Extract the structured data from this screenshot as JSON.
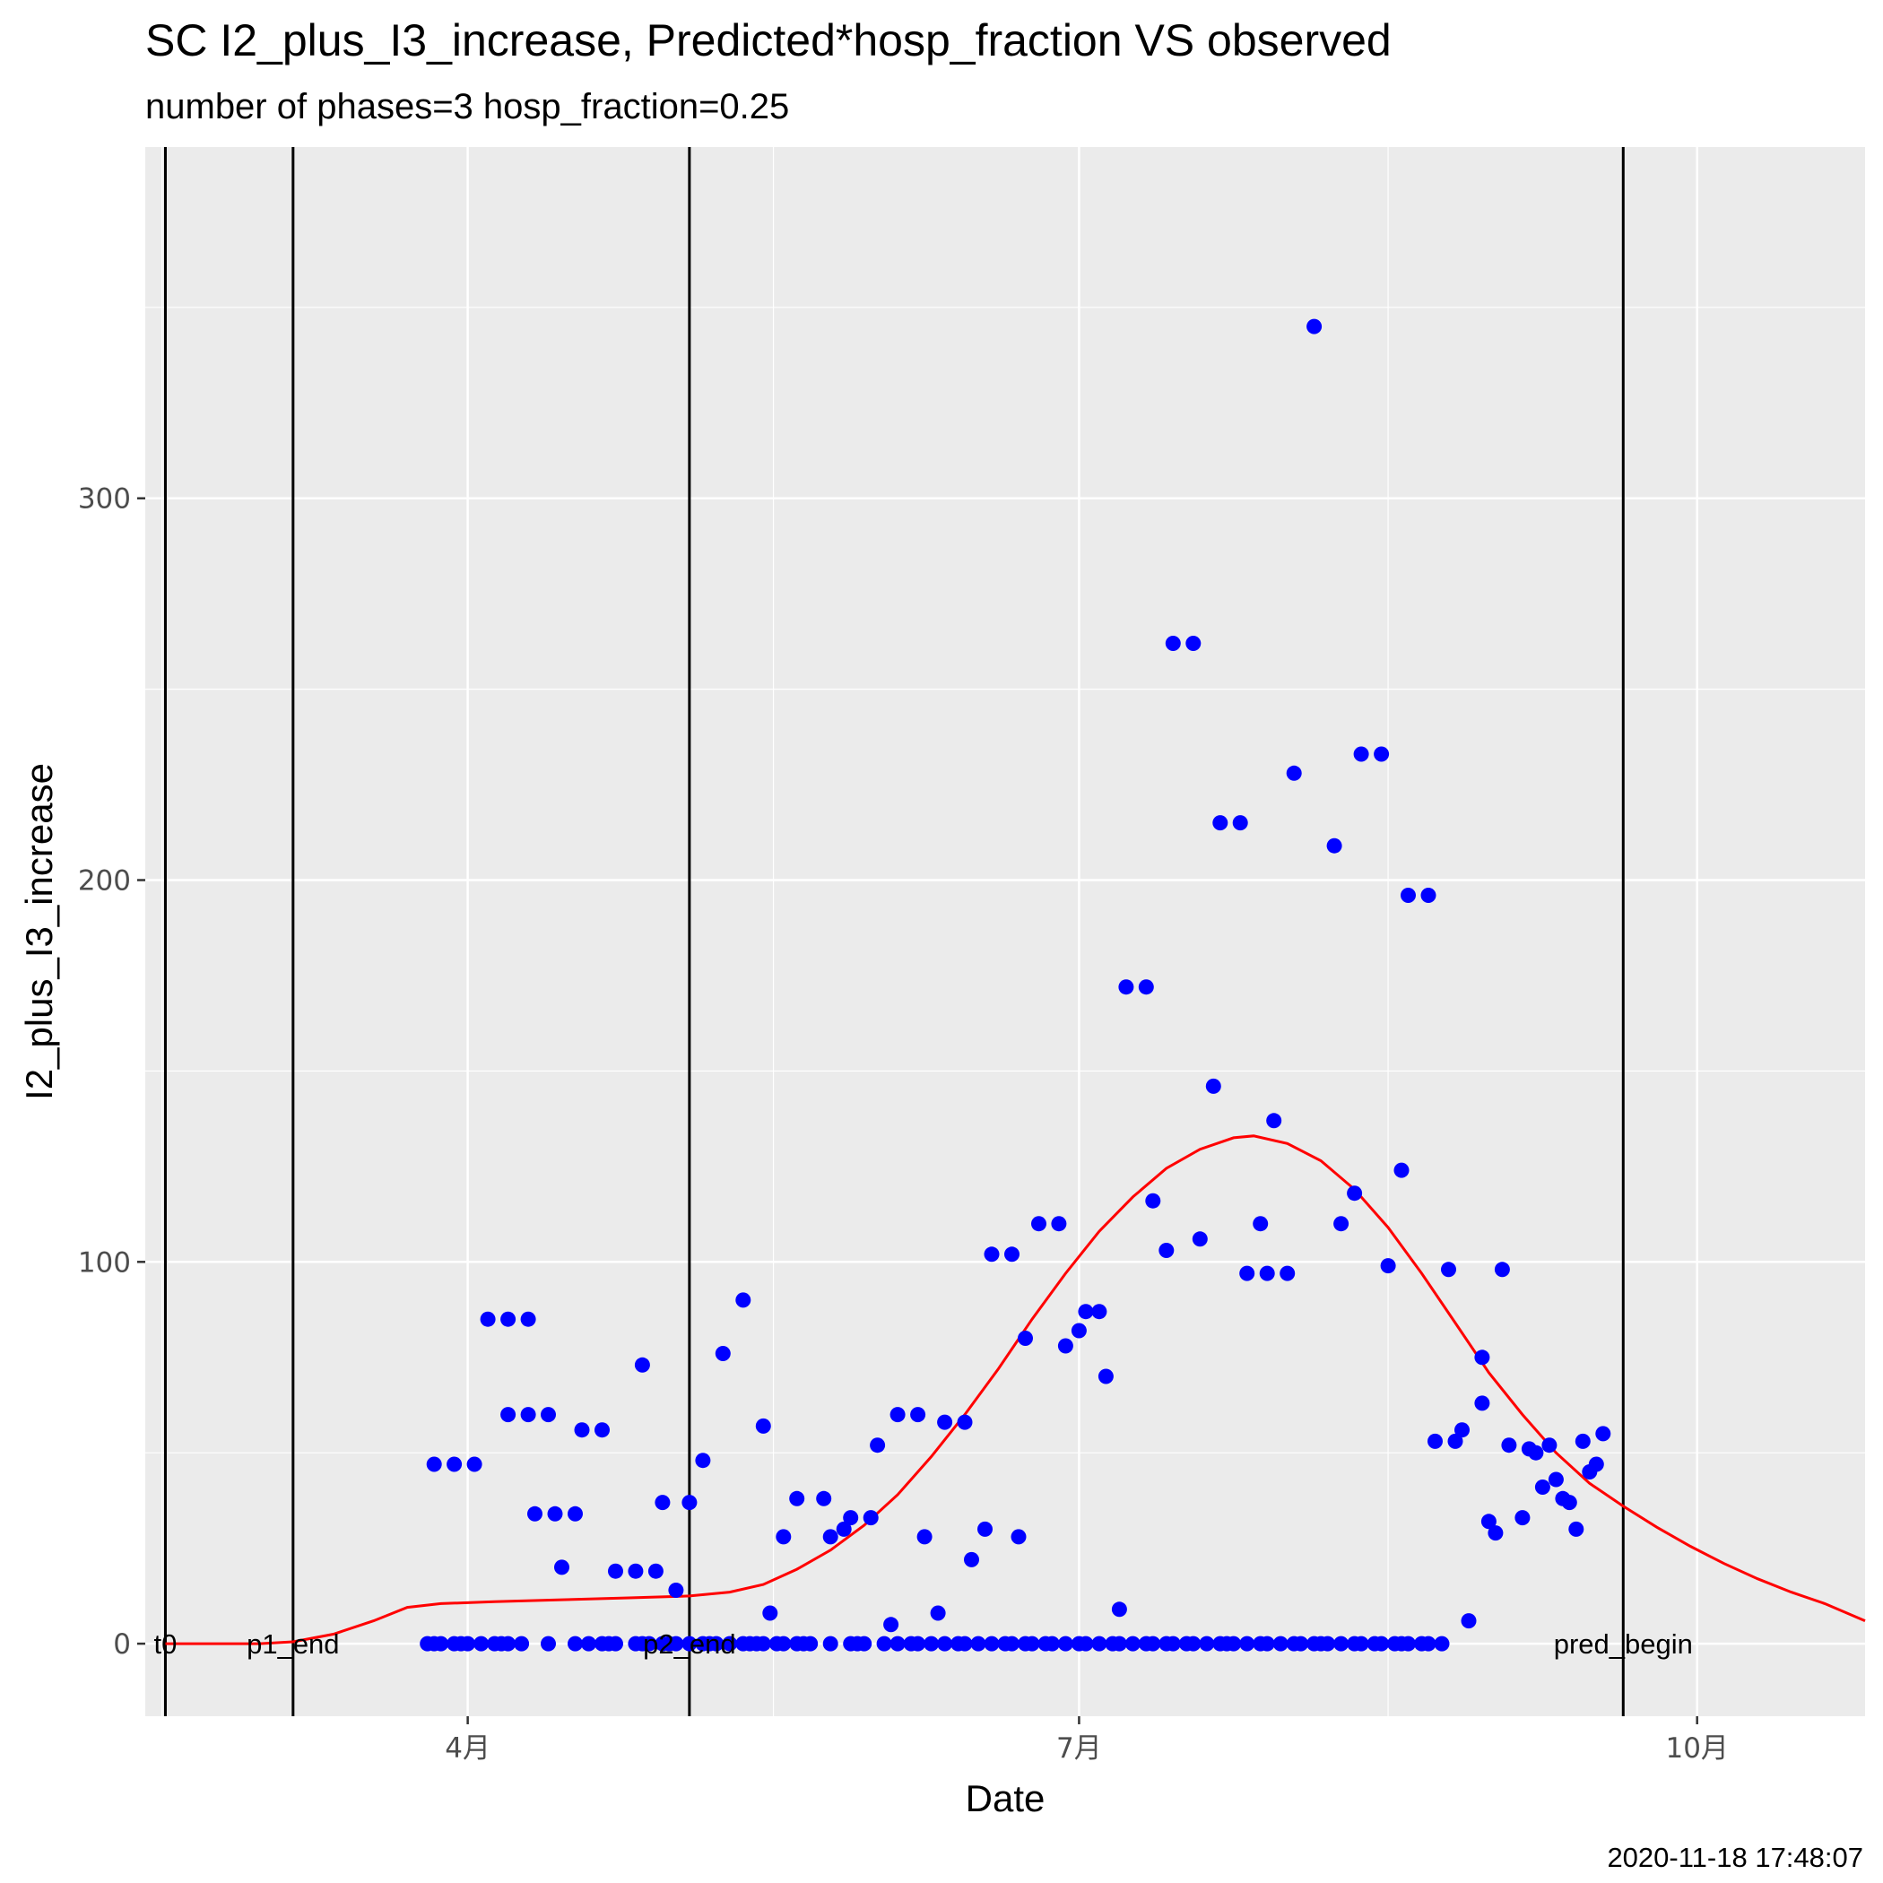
{
  "chart_data": {
    "type": "scatter",
    "title": "SC I2_plus_I3_increase, Predicted*hosp_fraction VS observed",
    "subtitle": "number of phases=3   hosp_fraction=0.25",
    "xlabel": "Date",
    "ylabel": "I2_plus_I3_increase",
    "caption": "2020-11-18 17:48:07",
    "xlim": [
      "2020-02-13",
      "2020-10-26"
    ],
    "ylim": [
      -19,
      392
    ],
    "x_ticks": [
      {
        "date": "2020-04-01",
        "label": "4月"
      },
      {
        "date": "2020-07-01",
        "label": "7月"
      },
      {
        "date": "2020-10-01",
        "label": "10月"
      }
    ],
    "y_ticks": [
      0,
      100,
      200,
      300
    ],
    "grid": true,
    "legend": "none",
    "colors": {
      "observed": "#0000ff",
      "predicted": "#ff0000",
      "vlines": "#000000",
      "panel": "#ebebeb",
      "grid": "#ffffff"
    },
    "vlines": [
      {
        "date": "2020-02-16",
        "label": "t0"
      },
      {
        "date": "2020-03-06",
        "label": "p1_end"
      },
      {
        "date": "2020-05-04",
        "label": "p2_end"
      },
      {
        "date": "2020-09-20",
        "label": "pred_begin"
      }
    ],
    "series": [
      {
        "kind": "line",
        "color": "#ff0000",
        "points": [
          [
            "2020-02-16",
            0
          ],
          [
            "2020-03-01",
            0
          ],
          [
            "2020-03-06",
            0.5
          ],
          [
            "2020-03-12",
            2.5
          ],
          [
            "2020-03-18",
            6
          ],
          [
            "2020-03-23",
            9.5
          ],
          [
            "2020-03-28",
            10.5
          ],
          [
            "2020-04-05",
            11
          ],
          [
            "2020-04-15",
            11.5
          ],
          [
            "2020-04-25",
            12
          ],
          [
            "2020-05-04",
            12.5
          ],
          [
            "2020-05-10",
            13.5
          ],
          [
            "2020-05-15",
            15.5
          ],
          [
            "2020-05-20",
            19.5
          ],
          [
            "2020-05-25",
            24.5
          ],
          [
            "2020-05-30",
            31
          ],
          [
            "2020-06-04",
            39
          ],
          [
            "2020-06-09",
            49
          ],
          [
            "2020-06-14",
            60
          ],
          [
            "2020-06-19",
            72
          ],
          [
            "2020-06-24",
            85
          ],
          [
            "2020-06-29",
            97
          ],
          [
            "2020-07-04",
            108
          ],
          [
            "2020-07-09",
            117
          ],
          [
            "2020-07-14",
            124.5
          ],
          [
            "2020-07-19",
            129.5
          ],
          [
            "2020-07-24",
            132.5
          ],
          [
            "2020-07-27",
            133
          ],
          [
            "2020-08-01",
            131
          ],
          [
            "2020-08-06",
            126.5
          ],
          [
            "2020-08-11",
            119
          ],
          [
            "2020-08-16",
            109
          ],
          [
            "2020-08-21",
            97
          ],
          [
            "2020-08-26",
            84
          ],
          [
            "2020-08-31",
            71
          ],
          [
            "2020-09-05",
            60
          ],
          [
            "2020-09-10",
            50
          ],
          [
            "2020-09-15",
            42
          ],
          [
            "2020-09-20",
            36
          ],
          [
            "2020-09-25",
            30.5
          ],
          [
            "2020-09-30",
            25.5
          ],
          [
            "2020-10-05",
            21
          ],
          [
            "2020-10-10",
            17
          ],
          [
            "2020-10-15",
            13.5
          ],
          [
            "2020-10-20",
            10.5
          ],
          [
            "2020-10-26",
            6
          ]
        ]
      },
      {
        "kind": "scatter",
        "color": "#0000ff",
        "points": [
          [
            "2020-03-27",
            47
          ],
          [
            "2020-03-30",
            47
          ],
          [
            "2020-04-02",
            47
          ],
          [
            "2020-04-04",
            85
          ],
          [
            "2020-04-07",
            85
          ],
          [
            "2020-04-10",
            85
          ],
          [
            "2020-04-07",
            60
          ],
          [
            "2020-04-10",
            60
          ],
          [
            "2020-04-13",
            60
          ],
          [
            "2020-04-11",
            34
          ],
          [
            "2020-04-14",
            34
          ],
          [
            "2020-04-17",
            34
          ],
          [
            "2020-04-15",
            20
          ],
          [
            "2020-04-18",
            56
          ],
          [
            "2020-04-21",
            56
          ],
          [
            "2020-04-23",
            19
          ],
          [
            "2020-04-26",
            19
          ],
          [
            "2020-04-29",
            19
          ],
          [
            "2020-04-27",
            73
          ],
          [
            "2020-04-30",
            37
          ],
          [
            "2020-05-02",
            14
          ],
          [
            "2020-05-04",
            37
          ],
          [
            "2020-05-06",
            48
          ],
          [
            "2020-05-09",
            76
          ],
          [
            "2020-05-12",
            90
          ],
          [
            "2020-05-15",
            57
          ],
          [
            "2020-05-16",
            8
          ],
          [
            "2020-05-18",
            28
          ],
          [
            "2020-05-20",
            38
          ],
          [
            "2020-05-24",
            38
          ],
          [
            "2020-05-25",
            28
          ],
          [
            "2020-05-27",
            30
          ],
          [
            "2020-05-28",
            33
          ],
          [
            "2020-05-31",
            33
          ],
          [
            "2020-06-01",
            52
          ],
          [
            "2020-06-03",
            5
          ],
          [
            "2020-06-04",
            60
          ],
          [
            "2020-06-07",
            60
          ],
          [
            "2020-06-08",
            28
          ],
          [
            "2020-06-10",
            8
          ],
          [
            "2020-06-11",
            58
          ],
          [
            "2020-06-14",
            58
          ],
          [
            "2020-06-15",
            22
          ],
          [
            "2020-06-17",
            30
          ],
          [
            "2020-06-18",
            102
          ],
          [
            "2020-06-21",
            102
          ],
          [
            "2020-06-22",
            28
          ],
          [
            "2020-06-23",
            80
          ],
          [
            "2020-06-25",
            110
          ],
          [
            "2020-06-28",
            110
          ],
          [
            "2020-06-29",
            78
          ],
          [
            "2020-07-01",
            82
          ],
          [
            "2020-07-02",
            87
          ],
          [
            "2020-07-04",
            87
          ],
          [
            "2020-07-05",
            70
          ],
          [
            "2020-07-07",
            9
          ],
          [
            "2020-07-08",
            172
          ],
          [
            "2020-07-11",
            172
          ],
          [
            "2020-07-12",
            116
          ],
          [
            "2020-07-14",
            103
          ],
          [
            "2020-07-15",
            262
          ],
          [
            "2020-07-18",
            262
          ],
          [
            "2020-07-19",
            106
          ],
          [
            "2020-07-21",
            146
          ],
          [
            "2020-07-22",
            215
          ],
          [
            "2020-07-25",
            215
          ],
          [
            "2020-07-26",
            97
          ],
          [
            "2020-07-28",
            110
          ],
          [
            "2020-07-29",
            97
          ],
          [
            "2020-07-30",
            137
          ],
          [
            "2020-08-01",
            97
          ],
          [
            "2020-08-02",
            228
          ],
          [
            "2020-08-05",
            345
          ],
          [
            "2020-08-08",
            209
          ],
          [
            "2020-08-09",
            110
          ],
          [
            "2020-08-11",
            118
          ],
          [
            "2020-08-12",
            233
          ],
          [
            "2020-08-15",
            233
          ],
          [
            "2020-08-16",
            99
          ],
          [
            "2020-08-18",
            124
          ],
          [
            "2020-08-19",
            196
          ],
          [
            "2020-08-22",
            196
          ],
          [
            "2020-08-23",
            53
          ],
          [
            "2020-08-25",
            98
          ],
          [
            "2020-08-26",
            53
          ],
          [
            "2020-08-27",
            56
          ],
          [
            "2020-08-28",
            6
          ],
          [
            "2020-08-30",
            63
          ],
          [
            "2020-08-30",
            75
          ],
          [
            "2020-08-31",
            32
          ],
          [
            "2020-09-01",
            29
          ],
          [
            "2020-09-02",
            98
          ],
          [
            "2020-09-03",
            52
          ],
          [
            "2020-09-05",
            33
          ],
          [
            "2020-09-06",
            51
          ],
          [
            "2020-09-07",
            50
          ],
          [
            "2020-09-08",
            41
          ],
          [
            "2020-09-09",
            52
          ],
          [
            "2020-09-10",
            43
          ],
          [
            "2020-09-11",
            38
          ],
          [
            "2020-09-12",
            37
          ],
          [
            "2020-09-13",
            30
          ],
          [
            "2020-09-14",
            53
          ],
          [
            "2020-09-15",
            45
          ],
          [
            "2020-09-16",
            47
          ],
          [
            "2020-09-17",
            55
          ],
          [
            "2020-03-26",
            0
          ],
          [
            "2020-03-27",
            0
          ],
          [
            "2020-03-28",
            0
          ],
          [
            "2020-03-30",
            0
          ],
          [
            "2020-03-31",
            0
          ],
          [
            "2020-04-01",
            0
          ],
          [
            "2020-04-03",
            0
          ],
          [
            "2020-04-05",
            0
          ],
          [
            "2020-04-06",
            0
          ],
          [
            "2020-04-07",
            0
          ],
          [
            "2020-04-09",
            0
          ],
          [
            "2020-04-13",
            0
          ],
          [
            "2020-04-17",
            0
          ],
          [
            "2020-04-19",
            0
          ],
          [
            "2020-04-21",
            0
          ],
          [
            "2020-04-22",
            0
          ],
          [
            "2020-04-23",
            0
          ],
          [
            "2020-04-26",
            0
          ],
          [
            "2020-04-27",
            0
          ],
          [
            "2020-04-28",
            0
          ],
          [
            "2020-04-30",
            0
          ],
          [
            "2020-05-01",
            0
          ],
          [
            "2020-05-02",
            0
          ],
          [
            "2020-05-04",
            0
          ],
          [
            "2020-05-06",
            0
          ],
          [
            "2020-05-07",
            0
          ],
          [
            "2020-05-08",
            0
          ],
          [
            "2020-05-10",
            0
          ],
          [
            "2020-05-12",
            0
          ],
          [
            "2020-05-13",
            0
          ],
          [
            "2020-05-14",
            0
          ],
          [
            "2020-05-15",
            0
          ],
          [
            "2020-05-17",
            0
          ],
          [
            "2020-05-18",
            0
          ],
          [
            "2020-05-20",
            0
          ],
          [
            "2020-05-21",
            0
          ],
          [
            "2020-05-22",
            0
          ],
          [
            "2020-05-25",
            0
          ],
          [
            "2020-05-28",
            0
          ],
          [
            "2020-05-29",
            0
          ],
          [
            "2020-05-30",
            0
          ],
          [
            "2020-06-02",
            0
          ],
          [
            "2020-06-04",
            0
          ],
          [
            "2020-06-06",
            0
          ],
          [
            "2020-06-07",
            0
          ],
          [
            "2020-06-09",
            0
          ],
          [
            "2020-06-11",
            0
          ],
          [
            "2020-06-13",
            0
          ],
          [
            "2020-06-14",
            0
          ],
          [
            "2020-06-16",
            0
          ],
          [
            "2020-06-18",
            0
          ],
          [
            "2020-06-20",
            0
          ],
          [
            "2020-06-21",
            0
          ],
          [
            "2020-06-23",
            0
          ],
          [
            "2020-06-24",
            0
          ],
          [
            "2020-06-26",
            0
          ],
          [
            "2020-06-27",
            0
          ],
          [
            "2020-06-29",
            0
          ],
          [
            "2020-07-01",
            0
          ],
          [
            "2020-07-02",
            0
          ],
          [
            "2020-07-04",
            0
          ],
          [
            "2020-07-06",
            0
          ],
          [
            "2020-07-07",
            0
          ],
          [
            "2020-07-09",
            0
          ],
          [
            "2020-07-11",
            0
          ],
          [
            "2020-07-12",
            0
          ],
          [
            "2020-07-14",
            0
          ],
          [
            "2020-07-15",
            0
          ],
          [
            "2020-07-17",
            0
          ],
          [
            "2020-07-18",
            0
          ],
          [
            "2020-07-20",
            0
          ],
          [
            "2020-07-22",
            0
          ],
          [
            "2020-07-23",
            0
          ],
          [
            "2020-07-24",
            0
          ],
          [
            "2020-07-26",
            0
          ],
          [
            "2020-07-28",
            0
          ],
          [
            "2020-07-29",
            0
          ],
          [
            "2020-07-31",
            0
          ],
          [
            "2020-08-02",
            0
          ],
          [
            "2020-08-03",
            0
          ],
          [
            "2020-08-05",
            0
          ],
          [
            "2020-08-06",
            0
          ],
          [
            "2020-08-07",
            0
          ],
          [
            "2020-08-09",
            0
          ],
          [
            "2020-08-11",
            0
          ],
          [
            "2020-08-12",
            0
          ],
          [
            "2020-08-14",
            0
          ],
          [
            "2020-08-15",
            0
          ],
          [
            "2020-08-17",
            0
          ],
          [
            "2020-08-18",
            0
          ],
          [
            "2020-08-19",
            0
          ],
          [
            "2020-08-21",
            0
          ],
          [
            "2020-08-22",
            0
          ],
          [
            "2020-08-24",
            0
          ]
        ]
      }
    ]
  }
}
